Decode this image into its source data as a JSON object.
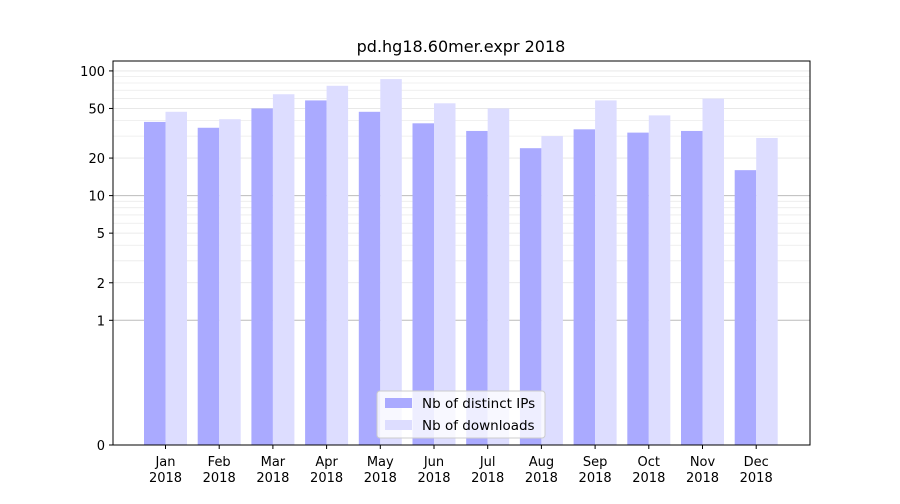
{
  "chart_data": {
    "type": "bar",
    "title": "pd.hg18.60mer.expr 2018",
    "xlabel": "",
    "ylabel": "",
    "scale": "symlog",
    "ylim": [
      0,
      100
    ],
    "yticks": [
      0,
      1,
      2,
      5,
      10,
      20,
      50,
      100
    ],
    "categories": [
      [
        "Jan",
        "2018"
      ],
      [
        "Feb",
        "2018"
      ],
      [
        "Mar",
        "2018"
      ],
      [
        "Apr",
        "2018"
      ],
      [
        "May",
        "2018"
      ],
      [
        "Jun",
        "2018"
      ],
      [
        "Jul",
        "2018"
      ],
      [
        "Aug",
        "2018"
      ],
      [
        "Sep",
        "2018"
      ],
      [
        "Oct",
        "2018"
      ],
      [
        "Nov",
        "2018"
      ],
      [
        "Dec",
        "2018"
      ]
    ],
    "series": [
      {
        "name": "Nb of distinct IPs",
        "color": "#aaaaff",
        "values": [
          39,
          35,
          50,
          58,
          47,
          38,
          33,
          24,
          34,
          32,
          33,
          16
        ]
      },
      {
        "name": "Nb of downloads",
        "color": "#ddddff",
        "values": [
          47,
          41,
          65,
          76,
          86,
          55,
          50,
          30,
          58,
          44,
          60,
          29
        ]
      }
    ],
    "legend_position": "lower-center",
    "grid": true
  }
}
